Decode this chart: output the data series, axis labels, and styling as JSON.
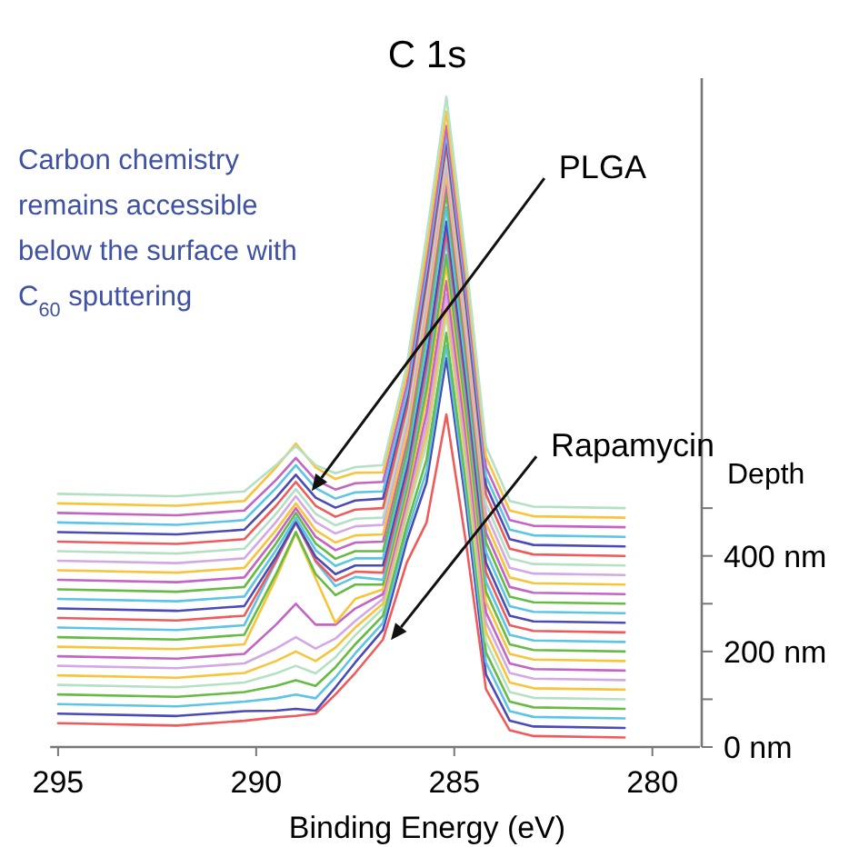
{
  "chart_data": {
    "type": "line",
    "title": "C 1s",
    "xlabel": "Binding Energy (eV)",
    "ylabel": "Depth",
    "x": [
      295,
      292,
      290.3,
      289.5,
      289,
      288.5,
      288,
      287.5,
      286.8,
      286.2,
      285.7,
      285.2,
      284.7,
      284.2,
      283.6,
      283,
      280.7
    ],
    "xlim": [
      295.2,
      278.8
    ],
    "xticks": [
      295,
      290,
      285,
      280
    ],
    "ylim": [
      0,
      1400
    ],
    "yticks": [
      {
        "value": 0,
        "label": "0 nm"
      },
      {
        "value": 100,
        "label": null
      },
      {
        "value": 200,
        "label": "200 nm"
      },
      {
        "value": 300,
        "label": null
      },
      {
        "value": 400,
        "label": "400 nm"
      },
      {
        "value": 500,
        "label": null
      }
    ],
    "grid": false,
    "marker": "none",
    "line_style": "solid",
    "annotations": [
      "Carbon chemistry remains accessible below the surface with C$_{60}$ sputtering",
      {
        "text": "PLGA",
        "x": 288.6,
        "y": 536
      },
      {
        "text": "Rapamycin",
        "x": 286.6,
        "y": 224
      }
    ],
    "series": [
      {
        "color": "#f05a5a",
        "values": [
          50,
          45,
          55,
          62,
          65,
          70,
          110,
          155,
          225,
          386,
          470,
          696,
          425,
          121,
          35,
          23,
          20
        ]
      },
      {
        "color": "#4a4ab8",
        "values": [
          70,
          65,
          75,
          76,
          80,
          76,
          125,
          177,
          245,
          431,
          554,
          814,
          504,
          152,
          55,
          43,
          40
        ]
      },
      {
        "color": "#5cc4e4",
        "values": [
          90,
          85,
          95,
          102,
          110,
          102,
          146,
          196,
          260,
          448,
          578,
          840,
          528,
          177,
          75,
          63,
          60
        ]
      },
      {
        "color": "#66bb44",
        "values": [
          110,
          105,
          115,
          128,
          140,
          128,
          167,
          215,
          275,
          464,
          602,
          867,
          552,
          198,
          95,
          83,
          80
        ]
      },
      {
        "color": "#b4e0c4",
        "values": [
          130,
          125,
          135,
          154,
          170,
          154,
          188,
          234,
          290,
          484,
          634,
          905,
          583,
          221,
          115,
          103,
          100
        ]
      },
      {
        "color": "#f8c43c",
        "values": [
          150,
          145,
          155,
          180,
          200,
          180,
          208,
          250,
          300,
          494,
          654,
          925,
          603,
          241,
          135,
          123,
          120
        ]
      },
      {
        "color": "#d4a8e4",
        "values": [
          170,
          165,
          175,
          206,
          230,
          206,
          227,
          264,
          310,
          504,
          675,
          947,
          624,
          261,
          155,
          143,
          140
        ]
      },
      {
        "color": "#c464c4",
        "values": [
          190,
          185,
          195,
          256,
          300,
          256,
          256,
          290,
          320,
          516,
          700,
          975,
          649,
          282,
          175,
          163,
          160
        ]
      },
      {
        "color": "#f8c43c",
        "values": [
          210,
          205,
          215,
          353,
          448,
          353,
          260,
          310,
          330,
          530,
          729,
          1008,
          677,
          304,
          195,
          183,
          180
        ]
      },
      {
        "color": "#66bb44",
        "values": [
          230,
          225,
          235,
          362,
          450,
          362,
          318,
          340,
          340,
          540,
          750,
          1030,
          698,
          325,
          215,
          203,
          200
        ]
      },
      {
        "color": "#5cc4e4",
        "values": [
          250,
          245,
          255,
          388,
          480,
          388,
          337,
          356,
          350,
          553,
          777,
          1061,
          725,
          346,
          235,
          223,
          220
        ]
      },
      {
        "color": "#f05a5a",
        "values": [
          270,
          265,
          275,
          390,
          470,
          390,
          348,
          367,
          365,
          568,
          797,
          1080,
          744,
          366,
          255,
          243,
          240
        ]
      },
      {
        "color": "#4a4ab8",
        "values": [
          290,
          285,
          295,
          398,
          470,
          398,
          362,
          380,
          380,
          583,
          817,
          1100,
          764,
          386,
          275,
          263,
          260
        ]
      },
      {
        "color": "#5cc4e4",
        "values": [
          310,
          305,
          315,
          412,
          480,
          412,
          379,
          395,
          395,
          600,
          843,
          1130,
          790,
          408,
          295,
          283,
          280
        ]
      },
      {
        "color": "#66bb44",
        "values": [
          330,
          325,
          335,
          426,
          490,
          426,
          394,
          410,
          410,
          618,
          870,
          1160,
          816,
          429,
          315,
          303,
          300
        ]
      },
      {
        "color": "#c464c4",
        "values": [
          350,
          345,
          355,
          440,
          500,
          440,
          412,
          428,
          430,
          638,
          891,
          1182,
          837,
          449,
          335,
          323,
          320
        ]
      },
      {
        "color": "#f8c43c",
        "values": [
          370,
          365,
          375,
          454,
          510,
          454,
          428,
          443,
          445,
          653,
          910,
          1200,
          856,
          469,
          355,
          343,
          340
        ]
      },
      {
        "color": "#d4a8e4",
        "values": [
          390,
          385,
          395,
          471,
          525,
          471,
          447,
          462,
          465,
          673,
          930,
          1220,
          876,
          489,
          375,
          363,
          360
        ]
      },
      {
        "color": "#b4e0c4",
        "values": [
          410,
          405,
          415,
          488,
          540,
          488,
          464,
          478,
          480,
          688,
          950,
          1240,
          896,
          509,
          395,
          383,
          380
        ]
      },
      {
        "color": "#f05a5a",
        "values": [
          430,
          425,
          435,
          505,
          555,
          505,
          482,
          497,
          500,
          708,
          970,
          1260,
          916,
          529,
          415,
          403,
          400
        ]
      },
      {
        "color": "#4a4ab8",
        "values": [
          450,
          445,
          455,
          522,
          570,
          522,
          501,
          516,
          520,
          726,
          986,
          1274,
          932,
          548,
          435,
          423,
          420
        ]
      },
      {
        "color": "#5cc4e4",
        "values": [
          470,
          465,
          475,
          542,
          590,
          542,
          520,
          533,
          535,
          739,
          1000,
          1285,
          947,
          567,
          455,
          443,
          440
        ]
      },
      {
        "color": "#c464c4",
        "values": [
          490,
          485,
          495,
          559,
          605,
          559,
          539,
          552,
          555,
          758,
          1017,
          1300,
          964,
          586,
          475,
          463,
          460
        ]
      },
      {
        "color": "#f8c43c",
        "values": [
          510,
          505,
          515,
          585,
          635,
          585,
          561,
          574,
          575,
          780,
          1043,
          1330,
          990,
          608,
          495,
          483,
          480
        ]
      },
      {
        "color": "#b4e0c4",
        "values": [
          530,
          525,
          535,
          590,
          630,
          590,
          573,
          586,
          590,
          798,
          1070,
          1361,
          1017,
          629,
          515,
          503,
          500
        ]
      }
    ]
  }
}
